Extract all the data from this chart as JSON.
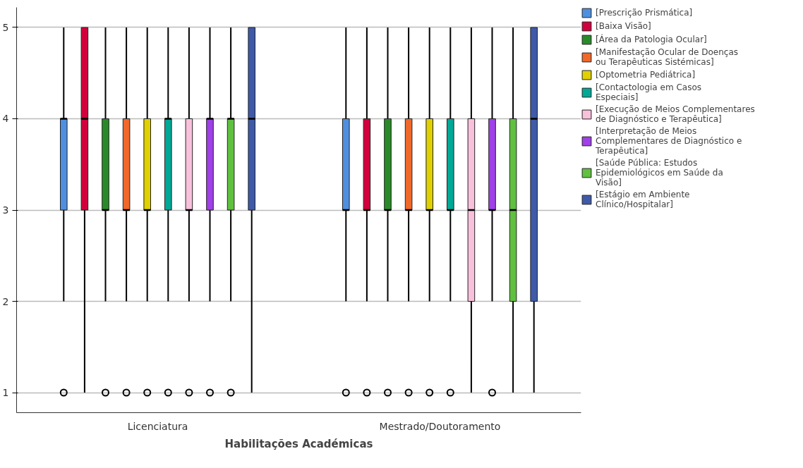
{
  "chart_data": {
    "type": "box",
    "xlabel": "Habilitações Académicas",
    "categories": [
      "Licenciatura",
      "Mestrado/Doutoramento"
    ],
    "ylim": [
      0.78,
      5.22
    ],
    "yticks": [
      1,
      2,
      3,
      4,
      5
    ],
    "grid": "y",
    "legend": "top right",
    "series": [
      {
        "name": "[Prescrição Prismática]",
        "color": "#4f8fe0",
        "boxes": [
          {
            "low": 2,
            "q1": 3,
            "median": 4,
            "q3": 4,
            "high": 5,
            "outliers": [
              1
            ]
          },
          {
            "low": 2,
            "q1": 3,
            "median": 3,
            "q3": 4,
            "high": 5,
            "outliers": [
              1
            ]
          }
        ]
      },
      {
        "name": "[Baixa Visão]",
        "color": "#d2003c",
        "boxes": [
          {
            "low": 1,
            "q1": 3,
            "median": 4,
            "q3": 5,
            "high": 5
          },
          {
            "low": 2,
            "q1": 3,
            "median": 3,
            "q3": 4,
            "high": 5,
            "outliers": [
              1
            ]
          }
        ]
      },
      {
        "name": "[Área da Patologia Ocular]",
        "color": "#2a8a2a",
        "boxes": [
          {
            "low": 2,
            "q1": 3,
            "median": 3,
            "q3": 4,
            "high": 5,
            "outliers": [
              1
            ]
          },
          {
            "low": 2,
            "q1": 3,
            "median": 3,
            "q3": 4,
            "high": 5,
            "outliers": [
              1
            ]
          }
        ]
      },
      {
        "name": "[Manifestação Ocular de Doenças ou Terapêuticas Sistémicas]",
        "color": "#f0682a",
        "boxes": [
          {
            "low": 2,
            "q1": 3,
            "median": 3,
            "q3": 4,
            "high": 5,
            "outliers": [
              1
            ]
          },
          {
            "low": 2,
            "q1": 3,
            "median": 3,
            "q3": 4,
            "high": 5,
            "outliers": [
              1
            ]
          }
        ]
      },
      {
        "name": "[Optometria Pediátrica]",
        "color": "#e0d000",
        "boxes": [
          {
            "low": 2,
            "q1": 3,
            "median": 3,
            "q3": 4,
            "high": 5,
            "outliers": [
              1
            ]
          },
          {
            "low": 2,
            "q1": 3,
            "median": 3,
            "q3": 4,
            "high": 5,
            "outliers": [
              1
            ]
          }
        ]
      },
      {
        "name": "[Contactologia em Casos Especiais]",
        "color": "#00a896",
        "boxes": [
          {
            "low": 2,
            "q1": 3,
            "median": 4,
            "q3": 4,
            "high": 5,
            "outliers": [
              1
            ]
          },
          {
            "low": 2,
            "q1": 3,
            "median": 3,
            "q3": 4,
            "high": 5,
            "outliers": [
              1
            ]
          }
        ]
      },
      {
        "name": "[Execução de Meios Complementares de Diagnóstico e Terapêutica]",
        "color": "#f9c0dc",
        "boxes": [
          {
            "low": 2,
            "q1": 3,
            "median": 3,
            "q3": 4,
            "high": 5,
            "outliers": [
              1
            ]
          },
          {
            "low": 1,
            "q1": 2,
            "median": 3,
            "q3": 4,
            "high": 5
          }
        ]
      },
      {
        "name": "[Interpretação de Meios Complementares de Diagnóstico e Terapêutica]",
        "color": "#a040e8",
        "boxes": [
          {
            "low": 2,
            "q1": 3,
            "median": 4,
            "q3": 4,
            "high": 5,
            "outliers": [
              1
            ]
          },
          {
            "low": 2,
            "q1": 3,
            "median": 3,
            "q3": 4,
            "high": 5,
            "outliers": [
              1
            ]
          }
        ]
      },
      {
        "name": "[Saúde Pública: Estudos Epidemiológicos em Saúde da Visão]",
        "color": "#60c040",
        "boxes": [
          {
            "low": 2,
            "q1": 3,
            "median": 4,
            "q3": 4,
            "high": 5,
            "outliers": [
              1
            ]
          },
          {
            "low": 1,
            "q1": 2,
            "median": 3,
            "q3": 4,
            "high": 5
          }
        ]
      },
      {
        "name": "[Estágio em Ambiente Clínico/Hospitalar]",
        "color": "#3f5aa8",
        "boxes": [
          {
            "low": 1,
            "q1": 3,
            "median": 4,
            "q3": 5,
            "high": 5
          },
          {
            "low": 1,
            "q1": 2,
            "median": 4,
            "q3": 5,
            "high": 5
          }
        ]
      }
    ]
  }
}
